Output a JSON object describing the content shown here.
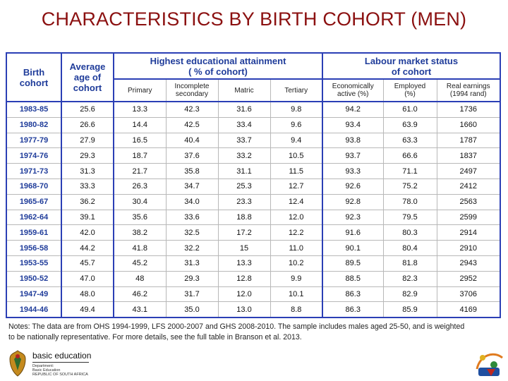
{
  "title": "CHARACTERISTICS BY BIRTH COHORT (MEN)",
  "headers": {
    "birth_cohort": [
      "Birth",
      "cohort"
    ],
    "avg_age": [
      "Average",
      "age of",
      "cohort"
    ],
    "education_group": [
      "Highest educational attainment",
      "( % of cohort)"
    ],
    "labour_group": [
      "Labour market status",
      "of cohort"
    ],
    "primary": "Primary",
    "incomplete_secondary": [
      "Incomplete",
      "secondary"
    ],
    "matric": "Matric",
    "tertiary": "Tertiary",
    "econ_active": [
      "Economically",
      "active (%)"
    ],
    "employed": [
      "Employed",
      "(%)"
    ],
    "real_earnings": [
      "Real earnings",
      "(1994 rand)"
    ]
  },
  "rows": [
    {
      "cohort": "1983-85",
      "age": "25.6",
      "primary": "13.3",
      "incomplete": "42.3",
      "matric": "31.6",
      "tertiary": "9.8",
      "active": "94.2",
      "employed": "61.0",
      "earnings": "1736"
    },
    {
      "cohort": "1980-82",
      "age": "26.6",
      "primary": "14.4",
      "incomplete": "42.5",
      "matric": "33.4",
      "tertiary": "9.6",
      "active": "93.4",
      "employed": "63.9",
      "earnings": "1660"
    },
    {
      "cohort": "1977-79",
      "age": "27.9",
      "primary": "16.5",
      "incomplete": "40.4",
      "matric": "33.7",
      "tertiary": "9.4",
      "active": "93.8",
      "employed": "63.3",
      "earnings": "1787"
    },
    {
      "cohort": "1974-76",
      "age": "29.3",
      "primary": "18.7",
      "incomplete": "37.6",
      "matric": "33.2",
      "tertiary": "10.5",
      "active": "93.7",
      "employed": "66.6",
      "earnings": "1837"
    },
    {
      "cohort": "1971-73",
      "age": "31.3",
      "primary": "21.7",
      "incomplete": "35.8",
      "matric": "31.1",
      "tertiary": "11.5",
      "active": "93.3",
      "employed": "71.1",
      "earnings": "2497"
    },
    {
      "cohort": "1968-70",
      "age": "33.3",
      "primary": "26.3",
      "incomplete": "34.7",
      "matric": "25.3",
      "tertiary": "12.7",
      "active": "92.6",
      "employed": "75.2",
      "earnings": "2412"
    },
    {
      "cohort": "1965-67",
      "age": "36.2",
      "primary": "30.4",
      "incomplete": "34.0",
      "matric": "23.3",
      "tertiary": "12.4",
      "active": "92.8",
      "employed": "78.0",
      "earnings": "2563"
    },
    {
      "cohort": "1962-64",
      "age": "39.1",
      "primary": "35.6",
      "incomplete": "33.6",
      "matric": "18.8",
      "tertiary": "12.0",
      "active": "92.3",
      "employed": "79.5",
      "earnings": "2599"
    },
    {
      "cohort": "1959-61",
      "age": "42.0",
      "primary": "38.2",
      "incomplete": "32.5",
      "matric": "17.2",
      "tertiary": "12.2",
      "active": "91.6",
      "employed": "80.3",
      "earnings": "2914"
    },
    {
      "cohort": "1956-58",
      "age": "44.2",
      "primary": "41.8",
      "incomplete": "32.2",
      "matric": "15",
      "tertiary": "11.0",
      "active": "90.1",
      "employed": "80.4",
      "earnings": "2910"
    },
    {
      "cohort": "1953-55",
      "age": "45.7",
      "primary": "45.2",
      "incomplete": "31.3",
      "matric": "13.3",
      "tertiary": "10.2",
      "active": "89.5",
      "employed": "81.8",
      "earnings": "2943"
    },
    {
      "cohort": "1950-52",
      "age": "47.0",
      "primary": "48",
      "incomplete": "29.3",
      "matric": "12.8",
      "tertiary": "9.9",
      "active": "88.5",
      "employed": "82.3",
      "earnings": "2952"
    },
    {
      "cohort": "1947-49",
      "age": "48.0",
      "primary": "46.2",
      "incomplete": "31.7",
      "matric": "12.0",
      "tertiary": "10.1",
      "active": "86.3",
      "employed": "82.9",
      "earnings": "3706"
    },
    {
      "cohort": "1944-46",
      "age": "49.4",
      "primary": "43.1",
      "incomplete": "35.0",
      "matric": "13.0",
      "tertiary": "8.8",
      "active": "86.3",
      "employed": "85.9",
      "earnings": "4169"
    }
  ],
  "notes": [
    "Notes: The data are from OHS 1994-1999, LFS 2000-2007 and GHS 2008-2010. The sample includes males aged 25-50, and is weighted",
    "to be nationally representative. For more details, see the full table in Branson et al. 2013."
  ],
  "logo": {
    "name": "basic education",
    "lines": [
      "Department:",
      "Basic Education",
      "REPUBLIC OF SOUTH AFRICA"
    ]
  },
  "colors": {
    "title": "#8b1010",
    "header_blue": "#1f3c9a",
    "border_blue": "#2b3fb5"
  }
}
